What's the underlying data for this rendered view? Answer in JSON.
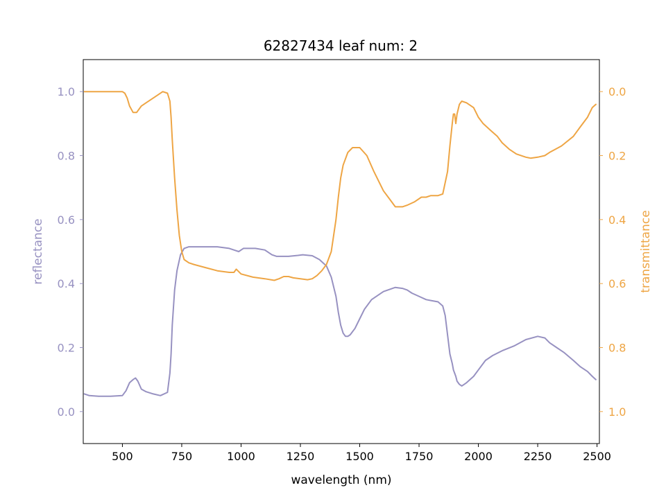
{
  "chart_data": {
    "type": "line",
    "title": "62827434 leaf num: 2",
    "xlabel": "wavelength (nm)",
    "ylabel_left": "reflectance",
    "ylabel_right": "transmittance",
    "xlim": [
      335,
      2510
    ],
    "ylim_left": [
      -0.1,
      1.1
    ],
    "ylim_right_inverted": [
      1.1,
      -0.1
    ],
    "x_ticks": [
      500,
      750,
      1000,
      1250,
      1500,
      1750,
      2000,
      2250,
      2500
    ],
    "x_tick_labels": [
      "500",
      "750",
      "1000",
      "1250",
      "1500",
      "1750",
      "2000",
      "2250",
      "2500"
    ],
    "y_left_ticks": [
      0.0,
      0.2,
      0.4,
      0.6,
      0.8,
      1.0
    ],
    "y_left_tick_labels": [
      "0.0",
      "0.2",
      "0.4",
      "0.6",
      "0.8",
      "1.0"
    ],
    "y_right_ticks": [
      0.0,
      0.2,
      0.4,
      0.6,
      0.8,
      1.0
    ],
    "y_right_tick_labels": [
      "0.0",
      "0.2",
      "0.4",
      "0.6",
      "0.8",
      "1.0"
    ],
    "grid": false,
    "colors": {
      "reflectance": "#9791c1",
      "transmittance": "#eea544",
      "axes": "#000000"
    },
    "series": [
      {
        "axis": "left",
        "color": "#9791c1",
        "x": [
          340,
          360,
          400,
          450,
          500,
          515,
          530,
          545,
          555,
          565,
          580,
          600,
          630,
          660,
          690,
          700,
          705,
          710,
          720,
          730,
          745,
          760,
          780,
          800,
          850,
          900,
          950,
          970,
          990,
          1000,
          1010,
          1030,
          1060,
          1100,
          1130,
          1150,
          1200,
          1240,
          1260,
          1300,
          1330,
          1360,
          1380,
          1400,
          1410,
          1420,
          1430,
          1440,
          1450,
          1460,
          1480,
          1500,
          1520,
          1550,
          1600,
          1650,
          1680,
          1700,
          1720,
          1750,
          1780,
          1800,
          1830,
          1850,
          1860,
          1870,
          1880,
          1890,
          1895,
          1900,
          1905,
          1910,
          1920,
          1930,
          1950,
          1980,
          2000,
          2030,
          2060,
          2100,
          2150,
          2200,
          2250,
          2280,
          2300,
          2330,
          2360,
          2400,
          2430,
          2460,
          2480,
          2495
        ],
        "y": [
          0.055,
          0.05,
          0.048,
          0.048,
          0.05,
          0.065,
          0.09,
          0.1,
          0.105,
          0.095,
          0.07,
          0.062,
          0.055,
          0.05,
          0.06,
          0.12,
          0.18,
          0.27,
          0.38,
          0.44,
          0.49,
          0.51,
          0.515,
          0.515,
          0.515,
          0.515,
          0.51,
          0.505,
          0.5,
          0.505,
          0.51,
          0.51,
          0.51,
          0.505,
          0.49,
          0.485,
          0.485,
          0.488,
          0.49,
          0.487,
          0.475,
          0.455,
          0.42,
          0.36,
          0.31,
          0.27,
          0.245,
          0.235,
          0.235,
          0.24,
          0.26,
          0.29,
          0.32,
          0.35,
          0.375,
          0.388,
          0.385,
          0.38,
          0.37,
          0.36,
          0.35,
          0.347,
          0.343,
          0.33,
          0.3,
          0.24,
          0.18,
          0.15,
          0.13,
          0.12,
          0.11,
          0.095,
          0.085,
          0.08,
          0.09,
          0.11,
          0.13,
          0.16,
          0.175,
          0.19,
          0.205,
          0.225,
          0.235,
          0.23,
          0.215,
          0.2,
          0.185,
          0.16,
          0.14,
          0.125,
          0.11,
          0.1
        ]
      },
      {
        "axis": "right",
        "color": "#eea544",
        "x": [
          340,
          360,
          400,
          450,
          500,
          510,
          520,
          530,
          545,
          560,
          580,
          600,
          630,
          650,
          670,
          690,
          700,
          705,
          710,
          720,
          730,
          740,
          750,
          760,
          780,
          800,
          850,
          900,
          950,
          970,
          980,
          1000,
          1050,
          1100,
          1140,
          1160,
          1180,
          1200,
          1220,
          1250,
          1280,
          1300,
          1320,
          1340,
          1360,
          1380,
          1400,
          1410,
          1420,
          1430,
          1450,
          1470,
          1500,
          1530,
          1560,
          1600,
          1630,
          1650,
          1680,
          1700,
          1730,
          1760,
          1780,
          1800,
          1830,
          1850,
          1870,
          1880,
          1890,
          1895,
          1900,
          1905,
          1910,
          1920,
          1930,
          1950,
          1980,
          2000,
          2020,
          2050,
          2080,
          2100,
          2130,
          2160,
          2200,
          2220,
          2250,
          2280,
          2300,
          2350,
          2400,
          2430,
          2460,
          2480,
          2495
        ],
        "y": [
          0.0,
          0.0,
          0.0,
          0.0,
          0.0,
          0.005,
          0.02,
          0.045,
          0.065,
          0.065,
          0.045,
          0.035,
          0.02,
          0.01,
          0.0,
          0.005,
          0.03,
          0.08,
          0.15,
          0.27,
          0.37,
          0.45,
          0.5,
          0.525,
          0.535,
          0.54,
          0.55,
          0.56,
          0.565,
          0.565,
          0.555,
          0.57,
          0.58,
          0.585,
          0.59,
          0.585,
          0.578,
          0.578,
          0.582,
          0.585,
          0.588,
          0.585,
          0.575,
          0.56,
          0.54,
          0.5,
          0.4,
          0.33,
          0.27,
          0.23,
          0.19,
          0.175,
          0.175,
          0.2,
          0.25,
          0.31,
          0.34,
          0.36,
          0.36,
          0.355,
          0.345,
          0.33,
          0.33,
          0.325,
          0.325,
          0.32,
          0.25,
          0.17,
          0.1,
          0.07,
          0.07,
          0.1,
          0.07,
          0.04,
          0.03,
          0.035,
          0.05,
          0.08,
          0.1,
          0.12,
          0.14,
          0.16,
          0.18,
          0.195,
          0.205,
          0.208,
          0.205,
          0.2,
          0.19,
          0.17,
          0.14,
          0.11,
          0.08,
          0.05,
          0.04
        ]
      }
    ]
  }
}
